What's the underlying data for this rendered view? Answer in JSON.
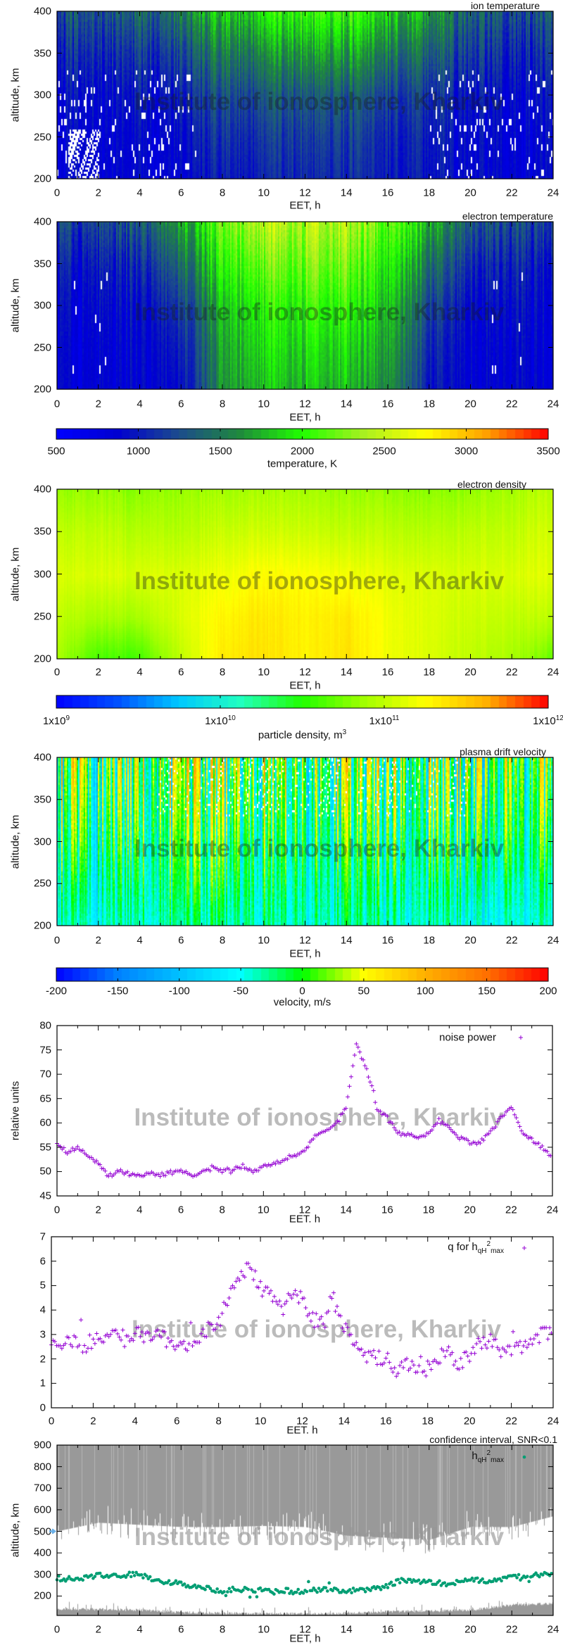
{
  "watermark": "Institute of ionosphere, Kharkiv",
  "colorbars": {
    "temperature": {
      "label": "temperature, K",
      "range": [
        500,
        3500
      ],
      "scale": "linear",
      "ticks": [
        "500",
        "1000",
        "1500",
        "2000",
        "2500",
        "3000",
        "3500"
      ],
      "colors": [
        "#0000ff",
        "#0000d0",
        "#1c4c8c",
        "#1f8a3c",
        "#20ff00",
        "#a8f020",
        "#ffff00",
        "#ffa000",
        "#ff0000"
      ]
    },
    "density": {
      "label": "particle density, m",
      "label_sup": "3",
      "range": [
        9,
        12
      ],
      "scale": "log10",
      "ticks": [
        {
          "base": "1x10",
          "exp": "9"
        },
        {
          "base": "1x10",
          "exp": "10"
        },
        {
          "base": "1x10",
          "exp": "11"
        },
        {
          "base": "1x10",
          "exp": "12"
        }
      ],
      "colors": [
        "#0000ff",
        "#0050ff",
        "#00c8ff",
        "#20ffc0",
        "#20ff00",
        "#a0ff00",
        "#ffff00",
        "#ffb000",
        "#ff0000"
      ]
    },
    "velocity": {
      "label": "velocity, m/s",
      "range": [
        -200,
        200
      ],
      "scale": "linear",
      "ticks": [
        "-200",
        "-150",
        "-100",
        "-50",
        "0",
        "50",
        "100",
        "150",
        "200"
      ],
      "colors": [
        "#0000ff",
        "#0080ff",
        "#00c0ff",
        "#00ffff",
        "#00ff00",
        "#ffff00",
        "#ffb000",
        "#ff7000",
        "#ff0000"
      ]
    }
  },
  "chart_data": [
    {
      "type": "heatmap",
      "title": "ion temperature",
      "xlabel": "EET, h",
      "ylabel": "altitude, km",
      "xlim": [
        0,
        24
      ],
      "ylim": [
        200,
        400
      ],
      "xticks": [
        "0",
        "2",
        "4",
        "6",
        "8",
        "10",
        "12",
        "14",
        "16",
        "18",
        "20",
        "22",
        "24"
      ],
      "yticks": [
        "200",
        "250",
        "300",
        "350",
        "400"
      ],
      "colorbar": "temperature",
      "grid": {
        "x": [
          0,
          2,
          4,
          6,
          8,
          10,
          12,
          14,
          16,
          18,
          20,
          22,
          24
        ],
        "y": [
          200,
          250,
          300,
          350,
          400
        ],
        "z": [
          [
            850,
            850,
            850,
            900,
            1000,
            1050,
            1050,
            1050,
            1050,
            950,
            900,
            850,
            850
          ],
          [
            850,
            850,
            850,
            950,
            1100,
            1150,
            1150,
            1150,
            1100,
            1000,
            900,
            850,
            850
          ],
          [
            900,
            900,
            950,
            1050,
            1250,
            1300,
            1300,
            1300,
            1250,
            1100,
            950,
            900,
            900
          ],
          [
            1050,
            1050,
            1100,
            1250,
            1500,
            1600,
            1650,
            1650,
            1550,
            1350,
            1150,
            1050,
            1050
          ],
          [
            1250,
            1250,
            1350,
            1550,
            1800,
            1950,
            2000,
            2000,
            1900,
            1650,
            1350,
            1250,
            1250
          ]
        ]
      }
    },
    {
      "type": "heatmap",
      "title": "electron temperature",
      "xlabel": "EET, h",
      "ylabel": "altitude, km",
      "xlim": [
        0,
        24
      ],
      "ylim": [
        200,
        400
      ],
      "xticks": [
        "0",
        "2",
        "4",
        "6",
        "8",
        "10",
        "12",
        "14",
        "16",
        "18",
        "20",
        "22",
        "24"
      ],
      "yticks": [
        "200",
        "250",
        "300",
        "350",
        "400"
      ],
      "colorbar": "temperature",
      "grid": {
        "x": [
          0,
          2,
          4,
          6,
          8,
          10,
          12,
          14,
          16,
          18,
          20,
          22,
          24
        ],
        "y": [
          200,
          250,
          300,
          350,
          400
        ],
        "z": [
          [
            850,
            850,
            850,
            900,
            1650,
            1750,
            1800,
            1750,
            1650,
            1000,
            850,
            850,
            850
          ],
          [
            850,
            850,
            850,
            1000,
            1700,
            1850,
            1900,
            1850,
            1750,
            1100,
            850,
            850,
            850
          ],
          [
            900,
            900,
            900,
            1150,
            1800,
            1950,
            2050,
            2000,
            1850,
            1250,
            900,
            900,
            900
          ],
          [
            1000,
            1000,
            1050,
            1400,
            2000,
            2150,
            2250,
            2200,
            2000,
            1500,
            1050,
            1000,
            1000
          ],
          [
            1200,
            1200,
            1300,
            1700,
            2200,
            2400,
            2450,
            2400,
            2200,
            1800,
            1300,
            1200,
            1200
          ]
        ]
      }
    },
    {
      "type": "heatmap",
      "title": "electron density",
      "xlabel": "EET, h",
      "ylabel": "altitude, km",
      "xlim": [
        0,
        24
      ],
      "ylim": [
        200,
        400
      ],
      "xticks": [
        "0",
        "2",
        "4",
        "6",
        "8",
        "10",
        "12",
        "14",
        "16",
        "18",
        "20",
        "22",
        "24"
      ],
      "yticks": [
        "200",
        "250",
        "300",
        "350",
        "400"
      ],
      "colorbar": "density",
      "value_unit": "log10(m^-3)",
      "grid": {
        "x": [
          0,
          2,
          4,
          6,
          8,
          10,
          12,
          14,
          16,
          18,
          20,
          22,
          24
        ],
        "y": [
          200,
          250,
          300,
          350,
          400
        ],
        "z": [
          [
            10.9,
            10.6,
            10.6,
            11.0,
            11.35,
            11.38,
            11.3,
            11.38,
            11.2,
            11.1,
            11.0,
            10.9,
            10.7
          ],
          [
            11.0,
            10.9,
            10.9,
            11.1,
            11.3,
            11.35,
            11.3,
            11.35,
            11.2,
            11.1,
            11.05,
            11.0,
            11.0
          ],
          [
            11.1,
            11.1,
            11.1,
            11.1,
            11.2,
            11.25,
            11.25,
            11.2,
            11.15,
            11.1,
            11.1,
            11.1,
            11.15
          ],
          [
            11.0,
            11.0,
            10.95,
            10.95,
            11.05,
            11.05,
            11.05,
            11.0,
            11.0,
            10.95,
            11.0,
            11.0,
            11.1
          ],
          [
            10.85,
            10.85,
            10.8,
            10.85,
            10.9,
            10.9,
            10.9,
            10.85,
            10.85,
            10.8,
            10.85,
            10.9,
            11.0
          ]
        ]
      }
    },
    {
      "type": "heatmap",
      "title": "plasma drift velocity",
      "xlabel": "EET, h",
      "ylabel": "altitude, km",
      "xlim": [
        0,
        24
      ],
      "ylim": [
        200,
        400
      ],
      "xticks": [
        "0",
        "2",
        "4",
        "6",
        "8",
        "10",
        "12",
        "14",
        "16",
        "18",
        "20",
        "22",
        "24"
      ],
      "yticks": [
        "200",
        "250",
        "300",
        "350",
        "400"
      ],
      "colorbar": "velocity",
      "grid": {
        "x": [
          0,
          2,
          4,
          6,
          8,
          10,
          12,
          14,
          16,
          18,
          20,
          22,
          24
        ],
        "y": [
          200,
          250,
          300,
          350,
          400
        ],
        "z": [
          [
            -45,
            -45,
            -40,
            -35,
            -35,
            -35,
            -35,
            -35,
            -40,
            -40,
            -45,
            -50,
            -50
          ],
          [
            -35,
            -35,
            -30,
            -25,
            -20,
            -25,
            -25,
            -30,
            -30,
            -30,
            -35,
            -40,
            -40
          ],
          [
            -20,
            -20,
            -20,
            -15,
            -10,
            -15,
            -15,
            -20,
            -20,
            -20,
            -20,
            -20,
            -20
          ],
          [
            -10,
            -10,
            -10,
            -5,
            0,
            -5,
            -5,
            -10,
            -10,
            -10,
            -10,
            -10,
            -10
          ],
          [
            0,
            0,
            0,
            5,
            5,
            5,
            5,
            0,
            0,
            0,
            0,
            0,
            0
          ]
        ]
      }
    },
    {
      "type": "scatter",
      "legend": "noise power",
      "xlabel": "EET. h",
      "ylabel": "relative units",
      "xlim": [
        0,
        24
      ],
      "ylim": [
        45,
        80
      ],
      "xticks": [
        "0",
        "2",
        "4",
        "6",
        "8",
        "10",
        "12",
        "14",
        "16",
        "18",
        "20",
        "22",
        "24"
      ],
      "yticks": [
        "45",
        "50",
        "55",
        "60",
        "65",
        "70",
        "75",
        "80"
      ],
      "color": "#9400d3",
      "x": [
        0,
        0.5,
        1,
        1.5,
        2,
        2.5,
        3,
        3.5,
        4,
        4.5,
        5,
        5.5,
        6,
        6.5,
        7,
        7.5,
        8,
        8.5,
        9,
        9.5,
        10,
        10.5,
        11,
        11.5,
        12,
        12.5,
        13,
        13.5,
        14,
        14.5,
        15,
        15.5,
        16,
        16.5,
        17,
        17.5,
        18,
        18.5,
        19,
        19.5,
        20,
        20.5,
        21,
        21.5,
        22,
        22.5,
        23,
        23.5,
        24
      ],
      "y": [
        56,
        54,
        55,
        53.5,
        51.5,
        49,
        50.3,
        49.5,
        49.3,
        49.6,
        49.2,
        49.8,
        50.2,
        49.2,
        50,
        50.6,
        50.2,
        50.6,
        51.2,
        50.2,
        51,
        51.5,
        52.5,
        53.5,
        54,
        57.5,
        58.5,
        60,
        63,
        76,
        71,
        63,
        61,
        58,
        57.5,
        57.2,
        57.8,
        60.5,
        59,
        57,
        56,
        56,
        58,
        61,
        63.5,
        58.5,
        56.5,
        55,
        53
      ]
    },
    {
      "type": "scatter",
      "legend": {
        "main": "q for h",
        "sub1": "qH",
        "sup": "2",
        "sub2": "max"
      },
      "xlabel": "EET. h",
      "ylabel": "",
      "xlim": [
        0,
        24
      ],
      "ylim": [
        0,
        7
      ],
      "xticks": [
        "0",
        "2",
        "4",
        "6",
        "8",
        "10",
        "12",
        "14",
        "16",
        "18",
        "20",
        "22",
        "24"
      ],
      "yticks": [
        "0",
        "1",
        "2",
        "3",
        "4",
        "5",
        "6",
        "7"
      ],
      "color": "#9400d3",
      "x": [
        0,
        0.5,
        1,
        1.5,
        2,
        2.5,
        3,
        3.5,
        4,
        4.5,
        5,
        5.5,
        6,
        6.5,
        7,
        7.5,
        8,
        8.5,
        9,
        9.5,
        10,
        10.5,
        11,
        11.5,
        12,
        12.5,
        13,
        13.5,
        14,
        14.5,
        15,
        15.5,
        16,
        16.5,
        17,
        17.5,
        18,
        18.5,
        19,
        19.5,
        20,
        20.5,
        21,
        21.5,
        22,
        22.5,
        23,
        23.5,
        24
      ],
      "y": [
        2.7,
        2.7,
        2.8,
        2.4,
        2.8,
        3.0,
        2.9,
        2.8,
        3.0,
        3.0,
        2.9,
        2.8,
        2.6,
        2.5,
        2.8,
        3.2,
        3.5,
        4.5,
        5.5,
        5.7,
        4.9,
        4.6,
        4.0,
        4.6,
        4.5,
        3.6,
        3.6,
        4.4,
        3.4,
        2.5,
        2.2,
        2.1,
        2.0,
        1.6,
        1.7,
        1.7,
        1.6,
        2.1,
        2.2,
        1.8,
        2.2,
        2.6,
        2.7,
        2.3,
        2.4,
        2.5,
        2.8,
        3.0,
        3.2
      ]
    },
    {
      "type": "scatter",
      "title": "confidence interval, SNR<0.1",
      "legend": {
        "main": "h",
        "sub1": "qH",
        "sup": "2",
        "sub2": "max"
      },
      "xlabel": "EET, h",
      "ylabel": "altitude, km",
      "xlim": [
        0,
        24
      ],
      "ylim": [
        110,
        900
      ],
      "xticks": [
        "0",
        "2",
        "4",
        "6",
        "8",
        "10",
        "12",
        "14",
        "16",
        "18",
        "20",
        "22",
        "24"
      ],
      "yticks": [
        "200",
        "300",
        "400",
        "500",
        "600",
        "700",
        "800",
        "900"
      ],
      "color": "#009e73",
      "band_color": "#999999",
      "x": [
        0,
        0.5,
        1,
        1.5,
        2,
        2.5,
        3,
        3.5,
        4,
        4.5,
        5,
        5.5,
        6,
        6.5,
        7,
        7.5,
        8,
        8.5,
        9,
        9.5,
        10,
        10.5,
        11,
        11.5,
        12,
        12.5,
        13,
        13.5,
        14,
        14.5,
        15,
        15.5,
        16,
        16.5,
        17,
        17.5,
        18,
        18.5,
        19,
        19.5,
        20,
        20.5,
        21,
        21.5,
        22,
        22.5,
        23,
        23.5,
        24
      ],
      "y": [
        280,
        280,
        275,
        285,
        300,
        295,
        295,
        300,
        300,
        285,
        270,
        265,
        255,
        250,
        245,
        230,
        220,
        230,
        230,
        230,
        225,
        220,
        225,
        220,
        225,
        225,
        230,
        230,
        225,
        225,
        230,
        240,
        245,
        270,
        275,
        265,
        265,
        260,
        255,
        265,
        275,
        275,
        270,
        280,
        290,
        290,
        295,
        300,
        305
      ],
      "upper_band_lower_edge_km": {
        "x": [
          0,
          2,
          4,
          6,
          8,
          10,
          12,
          14,
          16,
          18,
          20,
          22,
          24
        ],
        "y": [
          500,
          540,
          530,
          520,
          520,
          525,
          520,
          480,
          470,
          460,
          520,
          520,
          570
        ]
      },
      "lower_band_top_km": {
        "x": [
          0,
          2,
          4,
          6,
          8,
          10,
          12,
          14,
          16,
          18,
          20,
          22,
          24
        ],
        "y": [
          140,
          138,
          135,
          125,
          120,
          118,
          118,
          120,
          128,
          130,
          135,
          158,
          165
        ]
      }
    }
  ]
}
